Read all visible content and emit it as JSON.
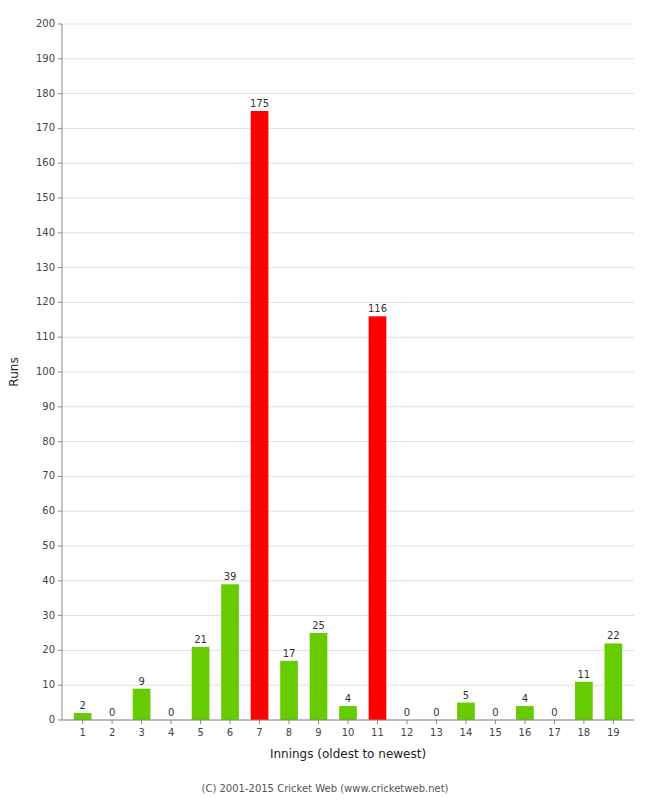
{
  "chart_data": {
    "type": "bar",
    "xlabel": "Innings (oldest to newest)",
    "ylabel": "Runs",
    "x": [
      1,
      2,
      3,
      4,
      5,
      6,
      7,
      8,
      9,
      10,
      11,
      12,
      13,
      14,
      15,
      16,
      17,
      18,
      19
    ],
    "values": [
      2,
      0,
      9,
      0,
      21,
      39,
      175,
      17,
      25,
      4,
      116,
      0,
      0,
      5,
      0,
      4,
      0,
      11,
      22
    ],
    "colors": [
      "#66cc00",
      "#66cc00",
      "#66cc00",
      "#66cc00",
      "#66cc00",
      "#66cc00",
      "#ff0000",
      "#66cc00",
      "#66cc00",
      "#66cc00",
      "#ff0000",
      "#66cc00",
      "#66cc00",
      "#66cc00",
      "#66cc00",
      "#66cc00",
      "#66cc00",
      "#66cc00",
      "#66cc00"
    ],
    "xlim": [
      0.3,
      19.7
    ],
    "xticks": [
      1,
      2,
      3,
      4,
      5,
      6,
      7,
      8,
      9,
      10,
      11,
      12,
      13,
      14,
      15,
      16,
      17,
      18,
      19
    ],
    "ylim": [
      0,
      200
    ],
    "yticks": [
      0,
      10,
      20,
      30,
      40,
      50,
      60,
      70,
      80,
      90,
      100,
      110,
      120,
      130,
      140,
      150,
      160,
      170,
      180,
      190,
      200
    ],
    "grid": true,
    "data_labels": true,
    "annotations": [
      "(C) 2001-2015 Cricket Web (www.cricketweb.net)"
    ]
  }
}
